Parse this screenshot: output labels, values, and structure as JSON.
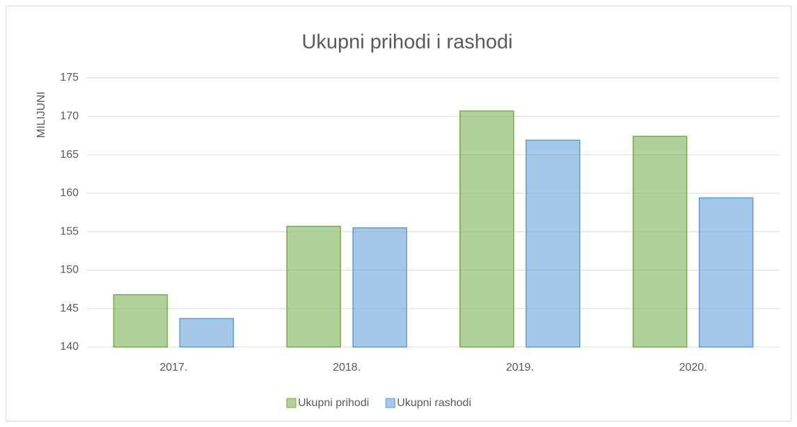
{
  "chart_data": {
    "type": "bar",
    "title": "Ukupni prihodi i rashodi",
    "y_label": "MILIJUNI",
    "categories": [
      "2017.",
      "2018.",
      "2019.",
      "2020."
    ],
    "series": [
      {
        "name": "Ukupni prihodi",
        "color": "#70ad47",
        "values": [
          146.8,
          155.7,
          170.7,
          167.4
        ]
      },
      {
        "name": "Ukupni rashodi",
        "color": "#5b9bd5",
        "values": [
          143.7,
          155.5,
          166.9,
          159.4
        ]
      }
    ],
    "ylim": [
      140,
      175
    ],
    "yticks": [
      140,
      145,
      150,
      155,
      160,
      165,
      170,
      175
    ],
    "grid": true,
    "legend": "bottom"
  }
}
